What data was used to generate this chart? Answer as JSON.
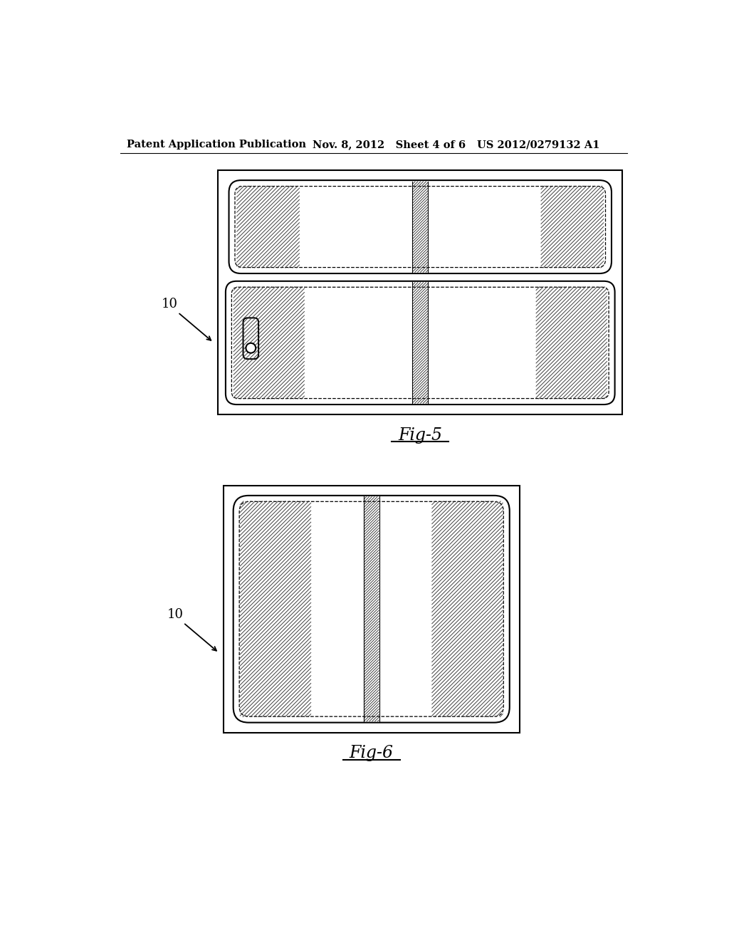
{
  "header_left": "Patent Application Publication",
  "header_mid": "Nov. 8, 2012   Sheet 4 of 6",
  "header_right": "US 2012/0279132 A1",
  "fig5_label": "Fig-5",
  "fig6_label": "Fig-6",
  "label_10": "10",
  "bg_color": "#ffffff",
  "line_color": "#000000"
}
